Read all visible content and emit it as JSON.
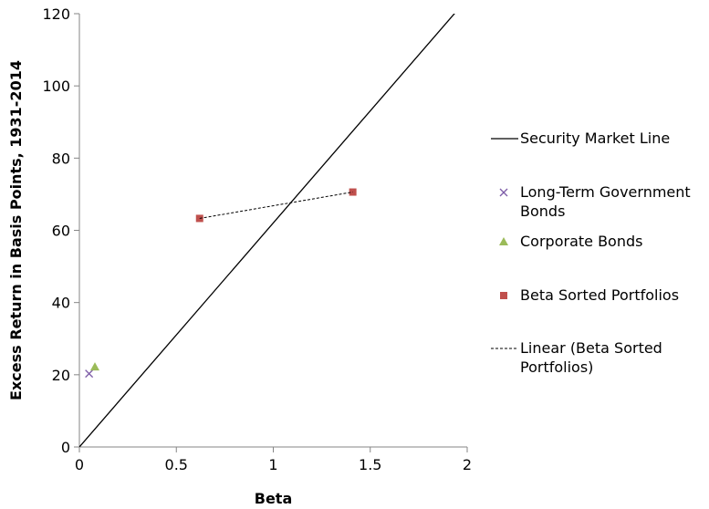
{
  "chart_data": {
    "type": "scatter",
    "xlabel": "Beta",
    "ylabel": "Excess Return in Basis Points, 1931-2014",
    "xlim": [
      0,
      2
    ],
    "ylim": [
      0,
      120
    ],
    "x_ticks": [
      "0",
      "0.5",
      "1",
      "1.5",
      "2"
    ],
    "y_ticks": [
      "0",
      "20",
      "40",
      "60",
      "80",
      "100",
      "120"
    ],
    "grid": false,
    "legend_position": "right",
    "series": [
      {
        "name": "Security Market Line",
        "kind": "line",
        "color": "#000000",
        "x": [
          0,
          1.95
        ],
        "y": [
          0,
          121
        ]
      },
      {
        "name": "Long-Term Government Bonds",
        "kind": "scatter",
        "marker": "x",
        "color": "#7e5da8",
        "x": [
          0.05
        ],
        "y": [
          20.3
        ]
      },
      {
        "name": "Corporate Bonds",
        "kind": "scatter",
        "marker": "triangle",
        "color": "#9bbb59",
        "x": [
          0.08
        ],
        "y": [
          22.2
        ]
      },
      {
        "name": "Beta Sorted Portfolios",
        "kind": "scatter",
        "marker": "square",
        "color": "#c0504d",
        "x": [
          0.62,
          1.41
        ],
        "y": [
          63.3,
          70.6
        ]
      },
      {
        "name": "Linear (Beta Sorted Portfolios)",
        "kind": "dashed-line",
        "color": "#000000",
        "x": [
          0.62,
          1.41
        ],
        "y": [
          63.3,
          70.6
        ]
      }
    ],
    "legend": [
      [
        "Security Market Line"
      ],
      [
        "Long-Term Government",
        "Bonds"
      ],
      [
        "Corporate Bonds"
      ],
      [
        "Beta Sorted Portfolios"
      ],
      [
        "Linear (Beta Sorted",
        "Portfolios)"
      ]
    ]
  }
}
